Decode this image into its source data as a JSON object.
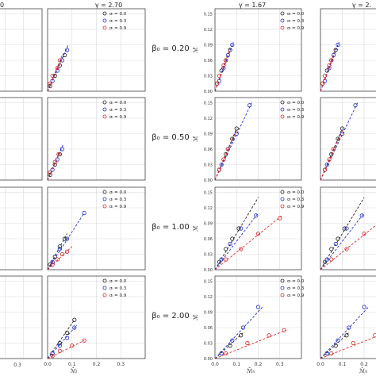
{
  "figure": {
    "column_titles": [
      {
        "label": "γ = 2.70"
      },
      {
        "label": "γ = 1.67"
      },
      {
        "label": "γ = 2."
      }
    ],
    "row_labels": [
      "β₀ = 0.20",
      "β₀ = 0.50",
      "β₀ = 1.00",
      "β₀ = 2.00"
    ],
    "legend_entries": [
      {
        "label": "σₗ = 0.0",
        "color": "#222222"
      },
      {
        "label": "σₗ = 0.3",
        "color": "#1f2fd0"
      },
      {
        "label": "σₗ = 0.9",
        "color": "#e02a2a"
      }
    ],
    "legend_entries_left_col": [
      {
        "label": "σₗ = 0.0",
        "color": "#222222"
      },
      {
        "label": "σₗ = 0.3",
        "color": "#1f2fd0"
      },
      {
        "label": "σₗ = 0.9",
        "color": "#e02a2a"
      }
    ],
    "ylabel_right": "ℳ̂",
    "xlabel_left": "ℳ̂ₗ",
    "xlabel_right": "ℳ̂ₕ",
    "bottom_tick_left_partial": "0.3",
    "colors": {
      "s00": "#222222",
      "s03": "#1f2fd0",
      "s09": "#e02a2a",
      "grid": "#d9d9d9",
      "axis": "#444444"
    }
  },
  "chart_data": [
    {
      "type": "scatter",
      "panel": "left-col2",
      "title": "γ = 2.70",
      "xlim": [
        0,
        0.4
      ],
      "xticks": [
        0.0,
        0.1,
        0.2,
        0.3
      ],
      "rows": [
        {
          "beta0": "0.20",
          "series": [
            {
              "name": "σₗ = 0.0",
              "x": [
                0.01,
                0.03,
                0.05,
                0.07
              ],
              "y": [
                0.01,
                0.03,
                0.05,
                0.07
              ],
              "fit": [
                [
                  0,
                  0
                ],
                [
                  0.08,
                  0.085
                ]
              ]
            },
            {
              "name": "σₗ = 0.3",
              "x": [
                0.02,
                0.04,
                0.06,
                0.08
              ],
              "y": [
                0.02,
                0.04,
                0.06,
                0.08
              ],
              "fit": [
                [
                  0,
                  0
                ],
                [
                  0.085,
                  0.09
                ]
              ]
            },
            {
              "name": "σₗ = 0.9",
              "x": [
                0.01,
                0.02,
                0.04,
                0.05
              ],
              "y": [
                0.015,
                0.03,
                0.045,
                0.06
              ],
              "fit": [
                [
                  0,
                  0
                ],
                [
                  0.06,
                  0.07
                ]
              ]
            }
          ]
        },
        {
          "beta0": "0.50",
          "series": [
            {
              "name": "σₗ = 0.0",
              "x": [
                0.01,
                0.03,
                0.05
              ],
              "y": [
                0.01,
                0.03,
                0.05
              ],
              "fit": [
                [
                  0,
                  0
                ],
                [
                  0.06,
                  0.065
                ]
              ]
            },
            {
              "name": "σₗ = 0.3",
              "x": [
                0.02,
                0.04,
                0.06
              ],
              "y": [
                0.02,
                0.04,
                0.06
              ],
              "fit": [
                [
                  0,
                  0
                ],
                [
                  0.065,
                  0.07
                ]
              ]
            },
            {
              "name": "σₗ = 0.9",
              "x": [
                0.01,
                0.03,
                0.045
              ],
              "y": [
                0.015,
                0.035,
                0.05
              ],
              "fit": [
                [
                  0,
                  0
                ],
                [
                  0.05,
                  0.055
                ]
              ]
            }
          ]
        },
        {
          "beta0": "1.00",
          "series": [
            {
              "name": "σₗ = 0.0",
              "x": [
                0.01,
                0.03,
                0.05,
                0.07
              ],
              "y": [
                0.01,
                0.025,
                0.045,
                0.06
              ],
              "fit": [
                [
                  0,
                  0
                ],
                [
                  0.08,
                  0.07
                ]
              ]
            },
            {
              "name": "σₗ = 0.3",
              "x": [
                0.02,
                0.05,
                0.08,
                0.15
              ],
              "y": [
                0.015,
                0.04,
                0.06,
                0.11
              ],
              "fit": [
                [
                  0,
                  0
                ],
                [
                  0.15,
                  0.11
                ]
              ]
            },
            {
              "name": "σₗ = 0.9",
              "x": [
                0.02,
                0.04,
                0.06,
                0.08
              ],
              "y": [
                0.01,
                0.02,
                0.03,
                0.035
              ],
              "fit": [
                [
                  0,
                  0
                ],
                [
                  0.1,
                  0.045
                ]
              ]
            }
          ]
        },
        {
          "beta0": "2.00",
          "series": [
            {
              "name": "σₗ = 0.0",
              "x": [
                0.02,
                0.05,
                0.08,
                0.11
              ],
              "y": [
                0.01,
                0.03,
                0.05,
                0.075
              ],
              "fit": [
                [
                  0,
                  0
                ],
                [
                  0.11,
                  0.075
                ]
              ]
            },
            {
              "name": "σₗ = 0.3",
              "x": [
                0.02,
                0.05,
                0.08,
                0.11
              ],
              "y": [
                0.01,
                0.025,
                0.04,
                0.06
              ],
              "fit": [
                [
                  0,
                  0
                ],
                [
                  0.12,
                  0.065
                ]
              ]
            },
            {
              "name": "σₗ = 0.9",
              "x": [
                0.02,
                0.05,
                0.1,
                0.15
              ],
              "y": [
                0.005,
                0.015,
                0.025,
                0.035
              ],
              "fit": [
                [
                  0,
                  0
                ],
                [
                  0.15,
                  0.035
                ]
              ]
            }
          ]
        }
      ]
    },
    {
      "type": "scatter",
      "panel": "right-col1",
      "title": "γ = 1.67",
      "xlim": [
        0,
        0.4
      ],
      "xticks": [
        0.0,
        0.1,
        0.2,
        0.3
      ],
      "ylim": [
        0,
        0.16
      ],
      "yticks": [
        0.0,
        0.03,
        0.06,
        0.09,
        0.12,
        0.15
      ],
      "ylabel": "ℳ̂",
      "xlabel": "ℳ̂ₕ",
      "rows": [
        {
          "beta0": "0.20",
          "series": [
            {
              "name": "σₗ = 0.0",
              "x": [
                0.01,
                0.03,
                0.05,
                0.07
              ],
              "y": [
                0.015,
                0.04,
                0.06,
                0.08
              ],
              "fit": [
                [
                  0,
                  0
                ],
                [
                  0.08,
                  0.09
                ]
              ]
            },
            {
              "name": "σₗ = 0.3",
              "x": [
                0.02,
                0.04,
                0.06,
                0.08
              ],
              "y": [
                0.02,
                0.045,
                0.07,
                0.09
              ],
              "fit": [
                [
                  0,
                  0
                ],
                [
                  0.085,
                  0.095
                ]
              ]
            },
            {
              "name": "σₗ = 0.9",
              "x": [
                0.01,
                0.02,
                0.04,
                0.05
              ],
              "y": [
                0.015,
                0.03,
                0.05,
                0.06
              ],
              "fit": [
                [
                  0,
                  0
                ],
                [
                  0.07,
                  0.085
                ]
              ]
            }
          ]
        },
        {
          "beta0": "0.50",
          "series": [
            {
              "name": "σₗ = 0.0",
              "x": [
                0.02,
                0.05,
                0.08,
                0.1
              ],
              "y": [
                0.02,
                0.05,
                0.08,
                0.1
              ],
              "fit": [
                [
                  0,
                  0
                ],
                [
                  0.1,
                  0.1
                ]
              ]
            },
            {
              "name": "σₗ = 0.3",
              "x": [
                0.03,
                0.06,
                0.1,
                0.16
              ],
              "y": [
                0.03,
                0.06,
                0.09,
                0.145
              ],
              "fit": [
                [
                  0,
                  0
                ],
                [
                  0.17,
                  0.15
                ]
              ]
            },
            {
              "name": "σₗ = 0.9",
              "x": [
                0.02,
                0.04,
                0.06
              ],
              "y": [
                0.02,
                0.04,
                0.06
              ],
              "fit": [
                [
                  0,
                  0
                ],
                [
                  0.1,
                  0.095
                ]
              ]
            }
          ]
        },
        {
          "beta0": "1.00",
          "series": [
            {
              "name": "σₗ = 0.0",
              "x": [
                0.02,
                0.05,
                0.08,
                0.11
              ],
              "y": [
                0.015,
                0.04,
                0.06,
                0.08
              ],
              "fit": [
                [
                  0,
                  0
                ],
                [
                  0.2,
                  0.14
                ]
              ]
            },
            {
              "name": "σₗ = 0.3",
              "x": [
                0.03,
                0.07,
                0.12,
                0.19
              ],
              "y": [
                0.02,
                0.05,
                0.08,
                0.105
              ],
              "fit": [
                [
                  0,
                  0
                ],
                [
                  0.2,
                  0.11
                ]
              ]
            },
            {
              "name": "σₗ = 0.9",
              "x": [
                0.05,
                0.12,
                0.2,
                0.3
              ],
              "y": [
                0.02,
                0.04,
                0.07,
                0.1
              ],
              "fit": [
                [
                  0,
                  0
                ],
                [
                  0.31,
                  0.105
                ]
              ]
            }
          ]
        },
        {
          "beta0": "2.00",
          "series": [
            {
              "name": "σₗ = 0.0",
              "x": [
                0.03,
                0.07,
                0.12
              ],
              "y": [
                0.01,
                0.025,
                0.045
              ],
              "fit": [
                [
                  0,
                  0
                ],
                [
                  0.13,
                  0.05
                ]
              ]
            },
            {
              "name": "σₗ = 0.3",
              "x": [
                0.03,
                0.08,
                0.13,
                0.2
              ],
              "y": [
                0.01,
                0.035,
                0.06,
                0.1
              ],
              "fit": [
                [
                  0,
                  0
                ],
                [
                  0.22,
                  0.1
                ]
              ]
            },
            {
              "name": "σₗ = 0.9",
              "x": [
                0.05,
                0.15,
                0.25,
                0.32
              ],
              "y": [
                0.01,
                0.03,
                0.045,
                0.055
              ],
              "fit": [
                [
                  0,
                  0
                ],
                [
                  0.33,
                  0.055
                ]
              ]
            }
          ]
        }
      ]
    }
  ]
}
